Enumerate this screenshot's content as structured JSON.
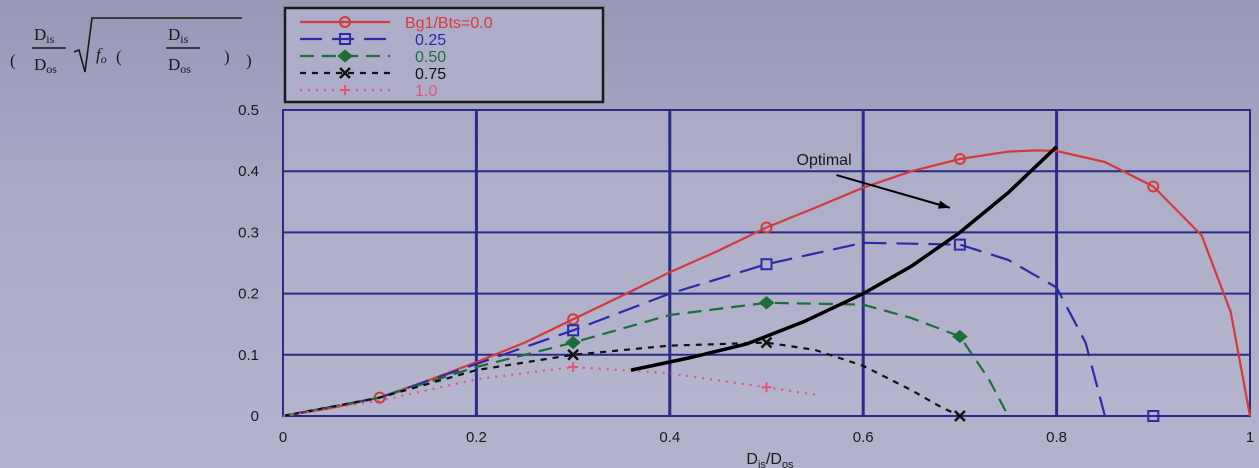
{
  "chart_data": {
    "type": "line",
    "xlabel": "Di/Do",
    "xlabel_main": "D",
    "xlabel_sub1": "is",
    "xlabel_mid": "/D",
    "xlabel_sub2": "os",
    "ylabel_parts": {
      "num_main": "D",
      "num_sub": "is",
      "den_main": "D",
      "den_sub": "os",
      "f": "f",
      "f_sub": "o",
      "inner_num_main": "D",
      "inner_num_sub": "is",
      "inner_den_main": "D",
      "inner_den_sub": "os"
    },
    "xlim": [
      0,
      1
    ],
    "ylim": [
      0,
      0.5
    ],
    "xticks": [
      0,
      0.2,
      0.4,
      0.6,
      0.8,
      1
    ],
    "xtick_labels": [
      "0",
      "0.2",
      "0.4",
      "0.6",
      "0.8",
      "1"
    ],
    "yticks": [
      0,
      0.1,
      0.2,
      0.3,
      0.4,
      0.5
    ],
    "ytick_labels": [
      "0",
      "0.1",
      "0.2",
      "0.3",
      "0.4",
      "0.5"
    ],
    "grid": true,
    "legend_position": "top-left",
    "series": [
      {
        "name": "Bg1/Bts=0.0",
        "color": "#d43a3a",
        "dash": "",
        "marker": "circle",
        "x": [
          0.0,
          0.05,
          0.1,
          0.15,
          0.2,
          0.25,
          0.3,
          0.35,
          0.4,
          0.45,
          0.5,
          0.55,
          0.6,
          0.65,
          0.7,
          0.75,
          0.78,
          0.8,
          0.85,
          0.9,
          0.95,
          0.98,
          1.0
        ],
        "y": [
          0.0,
          0.013,
          0.03,
          0.058,
          0.088,
          0.12,
          0.158,
          0.196,
          0.235,
          0.27,
          0.308,
          0.34,
          0.373,
          0.4,
          0.42,
          0.432,
          0.434,
          0.433,
          0.415,
          0.375,
          0.295,
          0.17,
          0.0
        ],
        "marker_x": [
          0.1,
          0.3,
          0.5,
          0.7,
          0.9
        ],
        "marker_y": [
          0.03,
          0.158,
          0.308,
          0.42,
          0.375
        ]
      },
      {
        "name": "0.25",
        "color": "#2b2ba8",
        "dash": "22,10",
        "marker": "square",
        "x": [
          0.0,
          0.1,
          0.2,
          0.3,
          0.4,
          0.5,
          0.6,
          0.7,
          0.75,
          0.8,
          0.83,
          0.85
        ],
        "y": [
          0.0,
          0.03,
          0.085,
          0.14,
          0.2,
          0.248,
          0.283,
          0.28,
          0.255,
          0.21,
          0.12,
          0.0
        ],
        "marker_x": [
          0.3,
          0.5,
          0.7,
          0.9
        ],
        "marker_y": [
          0.14,
          0.248,
          0.28,
          0.0
        ]
      },
      {
        "name": "0.50",
        "color": "#1f6e3a",
        "dash": "14,8",
        "marker": "diamond",
        "x": [
          0.0,
          0.1,
          0.2,
          0.3,
          0.4,
          0.5,
          0.6,
          0.65,
          0.7,
          0.73,
          0.75
        ],
        "y": [
          0.0,
          0.03,
          0.08,
          0.12,
          0.165,
          0.185,
          0.182,
          0.16,
          0.13,
          0.06,
          0.0
        ],
        "marker_x": [
          0.3,
          0.5,
          0.7
        ],
        "marker_y": [
          0.12,
          0.185,
          0.13
        ]
      },
      {
        "name": "0.75",
        "color": "#111111",
        "dash": "6,6",
        "marker": "x",
        "x": [
          0.0,
          0.1,
          0.2,
          0.3,
          0.4,
          0.5,
          0.55,
          0.6,
          0.65,
          0.68,
          0.7
        ],
        "y": [
          0.0,
          0.03,
          0.075,
          0.1,
          0.115,
          0.12,
          0.108,
          0.082,
          0.042,
          0.015,
          0.0
        ],
        "marker_x": [
          0.3,
          0.5,
          0.7
        ],
        "marker_y": [
          0.1,
          0.12,
          0.0
        ]
      },
      {
        "name": "1.0",
        "color": "#e0557a",
        "dash": "2,6",
        "marker": "plus",
        "x": [
          0.0,
          0.1,
          0.2,
          0.3,
          0.4,
          0.45,
          0.5,
          0.55
        ],
        "y": [
          0.0,
          0.025,
          0.06,
          0.08,
          0.07,
          0.058,
          0.047,
          0.035
        ],
        "marker_x": [
          0.3,
          0.5
        ],
        "marker_y": [
          0.08,
          0.047
        ]
      }
    ],
    "optimal_curve": {
      "color": "#000000",
      "x": [
        0.36,
        0.42,
        0.48,
        0.54,
        0.6,
        0.65,
        0.7,
        0.75,
        0.8
      ],
      "y": [
        0.075,
        0.095,
        0.118,
        0.155,
        0.2,
        0.245,
        0.3,
        0.365,
        0.44
      ]
    },
    "annotations": [
      {
        "text": "Optimal",
        "x": 0.5,
        "y": 0.41,
        "arrow_to_x": 0.7,
        "arrow_to_y": 0.337
      }
    ]
  }
}
